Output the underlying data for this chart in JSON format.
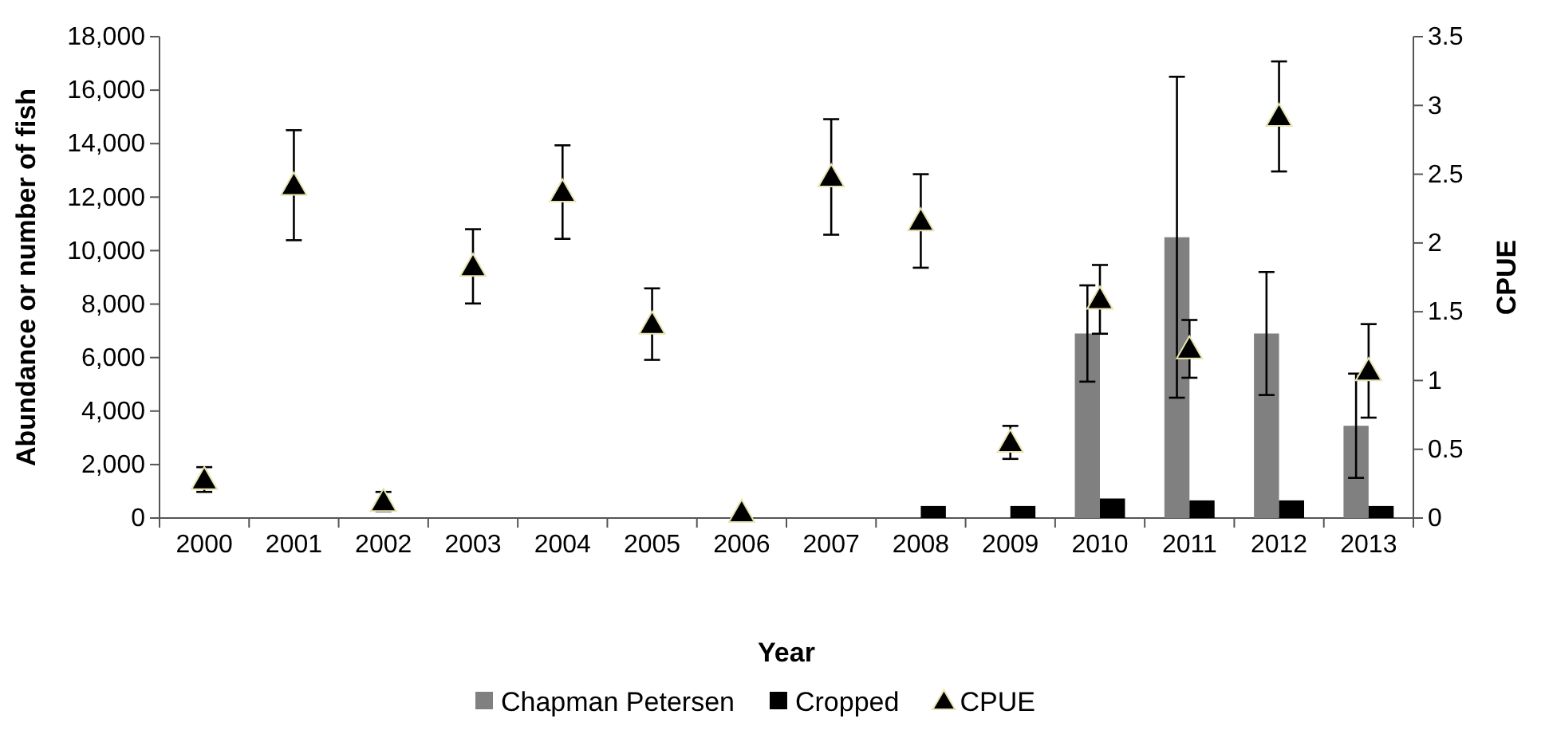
{
  "chart_data": {
    "type": "bar",
    "xlabel": "Year",
    "ylabel": "Abundance or number of fish",
    "y2label": "CPUE",
    "categories": [
      "2000",
      "2001",
      "2002",
      "2003",
      "2004",
      "2005",
      "2006",
      "2007",
      "2008",
      "2009",
      "2010",
      "2011",
      "2012",
      "2013"
    ],
    "series": [
      {
        "name": "Chapman Petersen",
        "color": "#808080",
        "values": [
          null,
          null,
          null,
          null,
          null,
          null,
          null,
          null,
          null,
          null,
          6900,
          10500,
          6900,
          3450
        ],
        "errors": [
          null,
          null,
          null,
          null,
          null,
          null,
          null,
          null,
          null,
          null,
          1800,
          6000,
          2300,
          1950
        ]
      },
      {
        "name": "Cropped",
        "type": "bar",
        "color": "#000000",
        "values": [
          null,
          null,
          null,
          null,
          null,
          null,
          null,
          null,
          450,
          450,
          730,
          660,
          660,
          450
        ]
      },
      {
        "name": "CPUE",
        "type": "scatter",
        "axis": "y2",
        "marker": "triangle",
        "color": "#000000",
        "values": [
          0.28,
          2.42,
          0.12,
          1.83,
          2.37,
          1.41,
          0.04,
          2.48,
          2.16,
          0.55,
          1.59,
          1.23,
          2.92,
          1.07
        ],
        "errors": [
          0.09,
          0.4,
          0.07,
          0.27,
          0.34,
          0.26,
          null,
          0.42,
          0.34,
          0.12,
          0.25,
          0.21,
          0.4,
          0.34
        ]
      }
    ],
    "ylim": [
      0,
      18000
    ],
    "yticks": [
      {
        "value": 0,
        "label": "0"
      },
      {
        "value": 2000,
        "label": "2,000"
      },
      {
        "value": 4000,
        "label": "4,000"
      },
      {
        "value": 6000,
        "label": "6,000"
      },
      {
        "value": 8000,
        "label": "8,000"
      },
      {
        "value": 10000,
        "label": "10,000"
      },
      {
        "value": 12000,
        "label": "12,000"
      },
      {
        "value": 14000,
        "label": "14,000"
      },
      {
        "value": 16000,
        "label": "16,000"
      },
      {
        "value": 18000,
        "label": "18,000"
      }
    ],
    "y2lim": [
      0,
      3.5
    ],
    "y2ticks": [
      0,
      0.5,
      1,
      1.5,
      2,
      2.5,
      3,
      3.5
    ],
    "grid": false,
    "legend": "bottom"
  }
}
